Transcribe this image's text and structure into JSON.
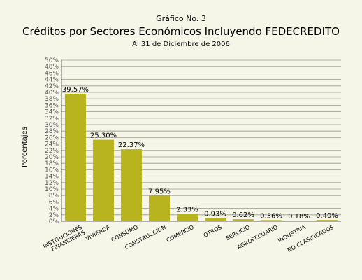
{
  "chart_data": {
    "type": "bar",
    "supertitle": "Gráfico No. 3",
    "title": "Créditos por Sectores Económicos Incluyendo FEDECREDITO",
    "subtitle": "Al 31 de Diciembre de 2006",
    "xlabel": "",
    "ylabel": "Porcentajes",
    "ylim": [
      0,
      50
    ],
    "ytick_step": 2,
    "ytick_suffix": "%",
    "grid": true,
    "bar_color": "#b8b41f",
    "categories": [
      [
        "INSTITUCIONES",
        "FINANCIERAS"
      ],
      [
        "VIVIENDA"
      ],
      [
        "CONSUMO"
      ],
      [
        "CONSTRUCCION"
      ],
      [
        "COMERCIO"
      ],
      [
        "OTROS"
      ],
      [
        "SERVICIO"
      ],
      [
        "AGROPECUARIO"
      ],
      [
        "INDUSTRIA"
      ],
      [
        "NO CLASIFICADOS"
      ]
    ],
    "values": [
      39.57,
      25.3,
      22.37,
      7.95,
      2.33,
      0.93,
      0.62,
      0.36,
      0.18,
      0.4
    ],
    "data_labels": [
      "39.57%",
      "25.30%",
      "22.37%",
      "7.95%",
      "2.33%",
      "0.93%",
      "0.62%",
      "0.36%",
      "0.18%",
      "0.40%"
    ]
  }
}
